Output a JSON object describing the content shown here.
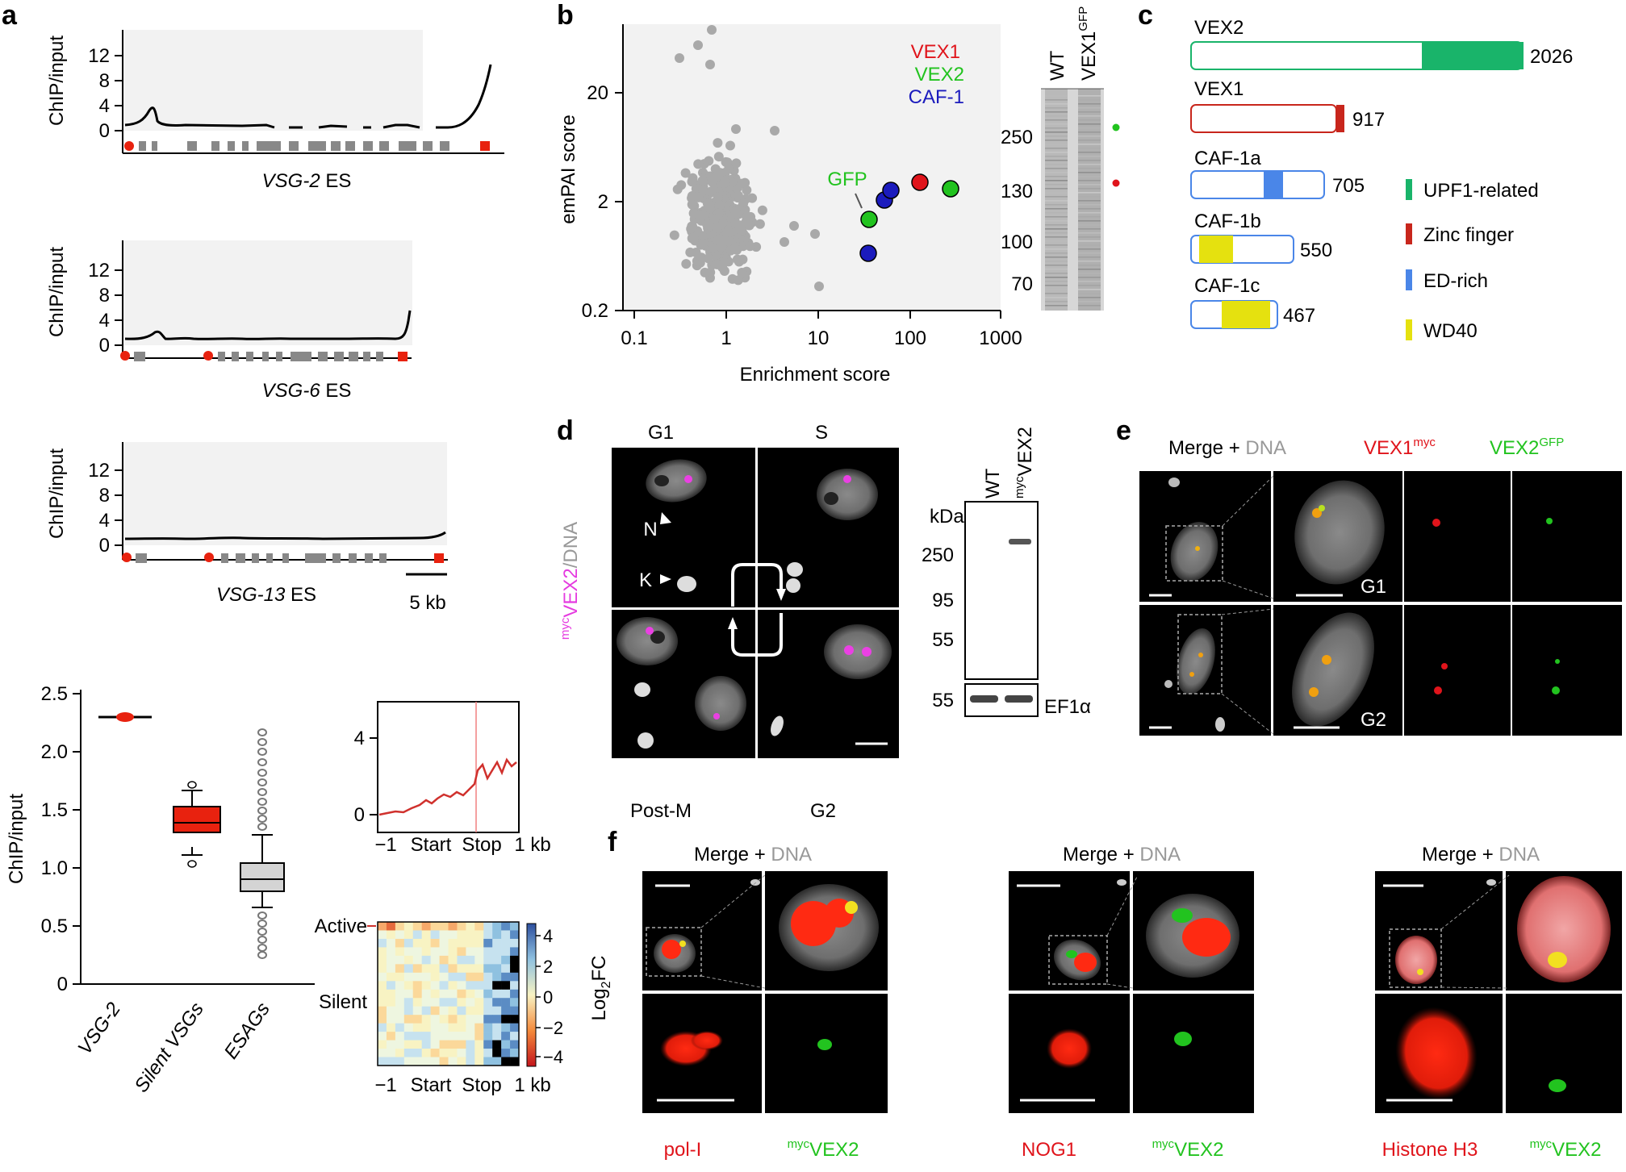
{
  "panel_labels": {
    "a": "a",
    "b": "b",
    "c": "c",
    "d": "d",
    "e": "e",
    "f": "f"
  },
  "panel_a": {
    "ylabel": "ChIP/input",
    "yticks": [
      "0",
      "4",
      "8",
      "12"
    ],
    "tracks": [
      {
        "name_italic": "VSG-2",
        "name_rest": " ES"
      },
      {
        "name_italic": "VSG-6",
        "name_rest": " ES"
      },
      {
        "name_italic": "VSG-13",
        "name_rest": " ES"
      }
    ],
    "scale_bar": "5 kb",
    "boxplot": {
      "ylabel": "ChIP/input",
      "yticks": [
        "0",
        "0.5",
        "1.0",
        "1.5",
        "2.0",
        "2.5"
      ],
      "categories": [
        "VSG-2",
        "Silent VSGs",
        "ESAGs"
      ]
    },
    "profile": {
      "yticks": [
        "0",
        "4"
      ],
      "xticks": [
        "−1",
        "Start",
        "Stop",
        "1 kb"
      ]
    },
    "heatmap": {
      "rows": [
        "Active",
        "Silent"
      ],
      "xticks": [
        "−1",
        "Start",
        "Stop",
        "1 kb"
      ],
      "cbar_ticks": [
        "4",
        "2",
        "0",
        "−2",
        "−4"
      ],
      "cbar_label_main": "Log",
      "cbar_label_sub": "2",
      "cbar_label_tail": "FC"
    }
  },
  "panel_b": {
    "ylabel": "emPAI score",
    "xlabel": "Enrichment score",
    "yticks": [
      "0.2",
      "2",
      "20"
    ],
    "xticks": [
      "0.1",
      "1",
      "10",
      "100",
      "1000"
    ],
    "legend": [
      {
        "label": "VEX1",
        "color": "#e0141b"
      },
      {
        "label": "VEX2",
        "color": "#22c31f"
      },
      {
        "label": "CAF-1",
        "color": "#1b1bbd"
      }
    ],
    "gfp_label": "GFP",
    "gel_lanes": [
      "WT",
      "VEX1"
    ],
    "gel_lane2_sup": "GFP",
    "gel_markers": [
      "250",
      "130",
      "100",
      "70"
    ]
  },
  "panel_c": {
    "proteins": [
      {
        "name": "VEX2",
        "length": "2026"
      },
      {
        "name": "VEX1",
        "length": "917"
      },
      {
        "name": "CAF-1a",
        "length": "705"
      },
      {
        "name": "CAF-1b",
        "length": "550"
      },
      {
        "name": "CAF-1c",
        "length": "467"
      }
    ],
    "legend": [
      {
        "label": "UPF1-related",
        "color": "#19b46a"
      },
      {
        "label": "Zinc finger",
        "color": "#c8261c"
      },
      {
        "label": "ED-rich",
        "color": "#4a86e8"
      },
      {
        "label": "WD40",
        "color": "#e5e10f"
      }
    ]
  },
  "panel_d": {
    "phases": [
      "G1",
      "S",
      "Post-M",
      "G2"
    ],
    "side_sup": "myc",
    "side_main": "VEX2",
    "side_tail": "/DNA",
    "arrow_labels": [
      "N",
      "K"
    ],
    "blot_lanes": [
      "WT",
      "VEX2"
    ],
    "blot_lane2_sup": "myc",
    "kda": "kDa",
    "markers": [
      "250",
      "95",
      "55"
    ],
    "loading_marker": "55",
    "loading_label": "EF1α"
  },
  "panel_e": {
    "header_merge": "Merge + ",
    "header_dna": "DNA",
    "header_vex1": "VEX1",
    "header_vex1_sup": "myc",
    "header_vex2": "VEX2",
    "header_vex2_sup": "GFP",
    "rows": [
      "G1",
      "G2"
    ]
  },
  "panel_f": {
    "header_merge": "Merge + ",
    "header_dna": "DNA",
    "groups": [
      {
        "red_label": "pol-I",
        "green_sup": "myc",
        "green_label": "VEX2"
      },
      {
        "red_label": "NOG1",
        "green_sup": "myc",
        "green_label": "VEX2"
      },
      {
        "red_label": "Histone H3",
        "green_sup": "myc",
        "green_label": "VEX2"
      }
    ]
  }
}
